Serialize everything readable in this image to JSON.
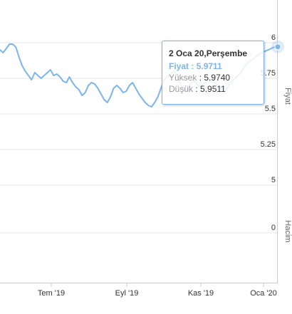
{
  "tooltip": {
    "date": "2 Oca 20,Perşembe",
    "price_label": "Fiyat",
    "price_value": "5.9711",
    "high_label": "Yüksek",
    "high_value": "5.9740",
    "low_label": "Düşük",
    "low_value": "5.9511"
  },
  "colors": {
    "line": "#7cb5ec",
    "grid": "#e6e6e6",
    "tooltip_border": "#7cb5ec",
    "price_label": "#7cb5ec"
  },
  "chart_data": {
    "type": "line",
    "x_tick_labels": [
      "Tem '19",
      "Eyl '19",
      "Kas '19",
      "Oca '20"
    ],
    "price_axis": {
      "title": "Fiyat",
      "ticks": [
        "6",
        "5.75",
        "5.5",
        "5.25",
        "5"
      ],
      "ylim": [
        5,
        6
      ]
    },
    "volume_axis": {
      "title": "Hacim",
      "ticks": [
        "0"
      ]
    },
    "series": [
      {
        "values": [
          5.95,
          5.93,
          5.96,
          5.99,
          5.99,
          5.97,
          5.9,
          5.84,
          5.8,
          5.77,
          5.74,
          5.79,
          5.77,
          5.75,
          5.77,
          5.79,
          5.81,
          5.77,
          5.78,
          5.76,
          5.73,
          5.72,
          5.76,
          5.72,
          5.69,
          5.67,
          5.63,
          5.65,
          5.7,
          5.72,
          5.71,
          5.68,
          5.64,
          5.6,
          5.58,
          5.62,
          5.68,
          5.7,
          5.68,
          5.65,
          5.66,
          5.7,
          5.72,
          5.68,
          5.64,
          5.61,
          5.58,
          5.56,
          5.55,
          5.58,
          5.62,
          5.68,
          5.74,
          5.76,
          5.78,
          5.8,
          5.78,
          5.72,
          5.68,
          5.66,
          5.7,
          5.74,
          5.72,
          5.69,
          5.7,
          5.72,
          5.75,
          5.73,
          5.72,
          5.7,
          5.68,
          5.66,
          5.68,
          5.72,
          5.74,
          5.76,
          5.78,
          5.82,
          5.85,
          5.87,
          5.88,
          5.9,
          5.92,
          5.93,
          5.94,
          5.95,
          5.96,
          5.97,
          5.9711
        ]
      }
    ],
    "tooltip_point": {
      "x": "2 Oca 20",
      "y": 5.9711,
      "high": 5.974,
      "low": 5.9511
    }
  }
}
